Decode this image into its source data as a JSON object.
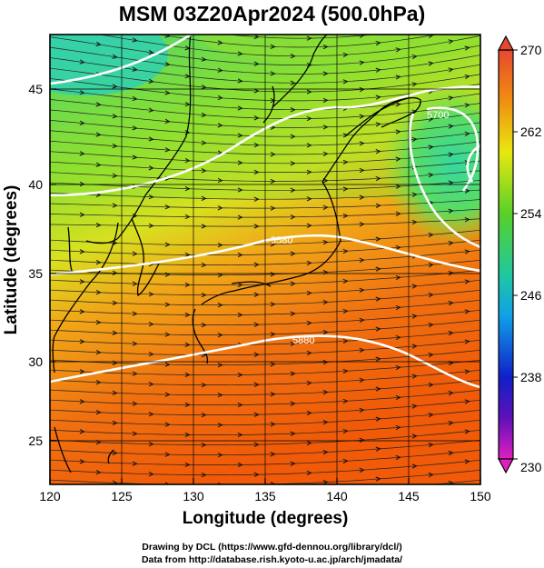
{
  "title": "MSM 03Z20Apr2024 (500.0hPa)",
  "x_axis": {
    "label": "Longitude (degrees)",
    "ticks": [
      "120",
      "125",
      "130",
      "135",
      "140",
      "145",
      "150"
    ],
    "min": 120,
    "max": 150
  },
  "y_axis": {
    "label": "Latitude  (degrees)",
    "ticks": [
      "25",
      "30",
      "35",
      "40",
      "45"
    ],
    "min": 22.5,
    "max": 47.5
  },
  "colorbar": {
    "min": 230,
    "max": 270,
    "ticks": [
      "270",
      "262",
      "254",
      "246",
      "238",
      "230"
    ]
  },
  "contour_labels": [
    "5700",
    "5580",
    "5880"
  ],
  "credits": [
    "Drawing by DCL (https://www.gfd-dennou.org/library/dcl/)",
    "Data from http://database.rish.kyoto-u.ac.jp/arch/jmadata/"
  ]
}
